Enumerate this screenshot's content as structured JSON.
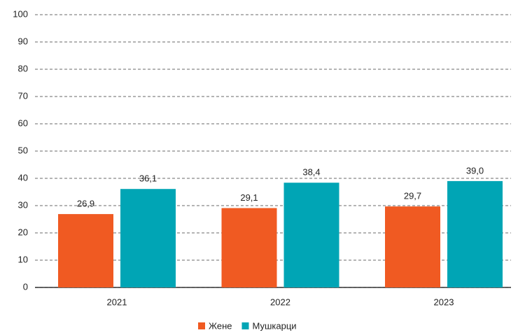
{
  "chart_data": {
    "type": "bar",
    "categories": [
      "2021",
      "2022",
      "2023"
    ],
    "series": [
      {
        "name": "Жене",
        "color": "#f05a22",
        "values": [
          26.9,
          29.1,
          29.7
        ],
        "value_labels": [
          "26,9",
          "29,1",
          "29,7"
        ]
      },
      {
        "name": "Мушкарци",
        "color": "#00a5b5",
        "values": [
          36.1,
          38.4,
          39.0
        ],
        "value_labels": [
          "36,1",
          "38,4",
          "39,0"
        ]
      }
    ],
    "ylim": [
      0,
      100
    ],
    "yticks": [
      0,
      10,
      20,
      30,
      40,
      50,
      60,
      70,
      80,
      90,
      100
    ],
    "grid": true
  }
}
